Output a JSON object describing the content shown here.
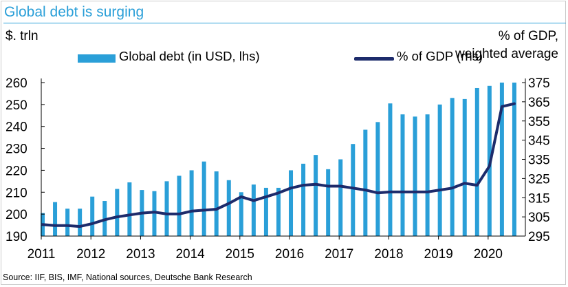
{
  "title": "Global debt is surging",
  "left_unit": "$. trln",
  "right_unit_line1": "% of GDP,",
  "right_unit_line2": "weighted average",
  "legend": {
    "bar_label": "Global debt (in USD, lhs)",
    "line_label": "% of GDP (rhs)"
  },
  "source": "Source: IIF, BIS, IMF, National sources, Deutsche Bank Research",
  "colors": {
    "bar": "#2a9fd8",
    "line": "#1d2b6b",
    "title": "#2a9fd8"
  },
  "chart_data": {
    "type": "bar",
    "x": [
      2011.0,
      2011.25,
      2011.5,
      2011.75,
      2012.0,
      2012.25,
      2012.5,
      2012.75,
      2013.0,
      2013.25,
      2013.5,
      2013.75,
      2014.0,
      2014.25,
      2014.5,
      2014.75,
      2015.0,
      2015.25,
      2015.5,
      2015.75,
      2016.0,
      2016.25,
      2016.5,
      2016.75,
      2017.0,
      2017.25,
      2017.5,
      2017.75,
      2018.0,
      2018.25,
      2018.5,
      2018.75,
      2019.0,
      2019.25,
      2019.5,
      2019.75,
      2020.0,
      2020.25,
      2020.5
    ],
    "xticks": [
      "2011",
      "2012",
      "2013",
      "2014",
      "2015",
      "2016",
      "2017",
      "2018",
      "2019",
      "2020"
    ],
    "xlim": [
      2011,
      2020.75
    ],
    "series": [
      {
        "name": "Global debt (in USD, lhs)",
        "type": "bar",
        "axis": "left",
        "values": [
          200.5,
          205.5,
          202.5,
          202.5,
          208,
          206,
          211.5,
          214.5,
          211,
          210.5,
          215,
          217.5,
          220,
          224,
          219.5,
          215.5,
          210,
          213.5,
          212,
          212,
          220,
          223,
          227,
          220.5,
          225,
          232,
          238.5,
          242,
          250.5,
          245.5,
          244.5,
          245.5,
          250,
          253,
          252.5,
          257.5,
          258.5,
          260,
          260
        ]
      },
      {
        "name": "% of GDP (rhs)",
        "type": "line",
        "axis": "right",
        "values": [
          301,
          300.5,
          300.5,
          300,
          301.5,
          303.5,
          305,
          306,
          307,
          307.5,
          306.5,
          306.5,
          308,
          308.5,
          309,
          312,
          315.5,
          313.5,
          315.5,
          317.5,
          320,
          321.5,
          322,
          321,
          321,
          320,
          319,
          317.5,
          318,
          318,
          318,
          318,
          319,
          320,
          322.5,
          321.5,
          331.5,
          362.5,
          364
        ]
      }
    ],
    "ylim_left": [
      190,
      260
    ],
    "yticks_left": [
      190,
      200,
      210,
      220,
      230,
      240,
      250,
      260
    ],
    "ylim_right": [
      295,
      375
    ],
    "yticks_right": [
      295,
      305,
      315,
      325,
      335,
      345,
      355,
      365,
      375
    ],
    "grid": false,
    "legend_position": "top"
  }
}
